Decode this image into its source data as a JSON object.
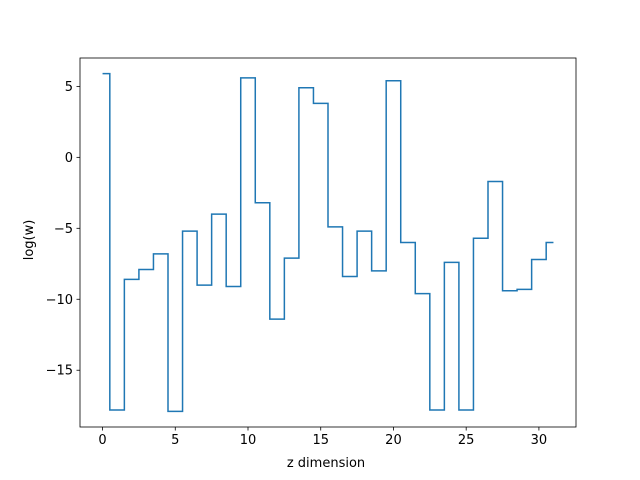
{
  "chart_data": {
    "type": "line",
    "drawstyle": "steps-mid",
    "title": "",
    "xlabel": "z dimension",
    "ylabel": "log(w)",
    "xlim": [
      -1.55,
      32.55
    ],
    "ylim": [
      -19.0,
      7.0
    ],
    "xticks": [
      0,
      5,
      10,
      15,
      20,
      25,
      30
    ],
    "yticks": [
      -15,
      -10,
      -5,
      0,
      5
    ],
    "ytick_labels": [
      "−15",
      "−10",
      "−5",
      "0",
      "5"
    ],
    "grid": false,
    "legend": "none",
    "series": [
      {
        "color": "#1f77b4",
        "x": [
          0,
          1,
          2,
          3,
          4,
          5,
          6,
          7,
          8,
          9,
          10,
          11,
          12,
          13,
          14,
          15,
          16,
          17,
          18,
          19,
          20,
          21,
          22,
          23,
          24,
          25,
          26,
          27,
          28,
          29,
          30,
          31
        ],
        "y": [
          5.9,
          -17.8,
          -8.6,
          -7.9,
          -6.8,
          -17.9,
          -5.2,
          -9.0,
          -4.0,
          -9.1,
          5.6,
          -3.2,
          -11.4,
          -7.1,
          4.9,
          3.8,
          -4.9,
          -8.4,
          -5.2,
          -8.0,
          5.4,
          -6.0,
          -9.6,
          -17.8,
          -7.4,
          -17.8,
          -5.7,
          -1.7,
          -9.4,
          -9.3,
          -7.2,
          -6.0
        ]
      }
    ]
  }
}
